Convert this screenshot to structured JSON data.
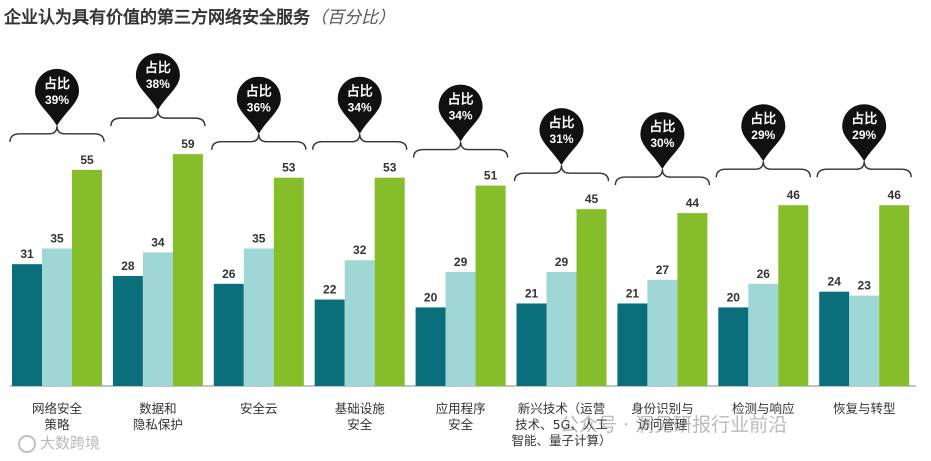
{
  "title": "企业认为具有价值的第三方网络安全服务",
  "subtitle": "（百分比）",
  "watermarks": {
    "left": "大数跨境",
    "right": "公众号 · 洞见研报行业前沿"
  },
  "colors": {
    "s1": "#0a6f7a",
    "s2": "#9fd6d6",
    "s3": "#86be2b",
    "pin": "#111111",
    "bracket": "#333333"
  },
  "chart_data": {
    "type": "bar",
    "title": "企业认为具有价值的第三方网络安全服务（百分比）",
    "categories": [
      [
        "网络安全",
        "策略"
      ],
      [
        "数据和",
        "隐私保护"
      ],
      [
        "安全云"
      ],
      [
        "基础设施",
        "安全"
      ],
      [
        "应用程序",
        "安全"
      ],
      [
        "新兴技术（运营",
        "技术、5G、人工",
        "智能、量子计算）"
      ],
      [
        "身份识别与",
        "访问管理"
      ],
      [
        "检测与响应"
      ],
      [
        "恢复与转型"
      ]
    ],
    "series": [
      {
        "name": "series-1",
        "values": [
          31,
          28,
          26,
          22,
          20,
          21,
          21,
          20,
          24
        ]
      },
      {
        "name": "series-2",
        "values": [
          35,
          34,
          35,
          32,
          29,
          29,
          27,
          26,
          23
        ]
      },
      {
        "name": "series-3",
        "values": [
          55,
          59,
          53,
          53,
          51,
          45,
          44,
          46,
          46
        ]
      }
    ],
    "pin_label": "占比",
    "shares": [
      "39%",
      "38%",
      "36%",
      "34%",
      "34%",
      "31%",
      "30%",
      "29%",
      "29%"
    ],
    "ylim": [
      0,
      65
    ],
    "xlabel": "",
    "ylabel": ""
  }
}
